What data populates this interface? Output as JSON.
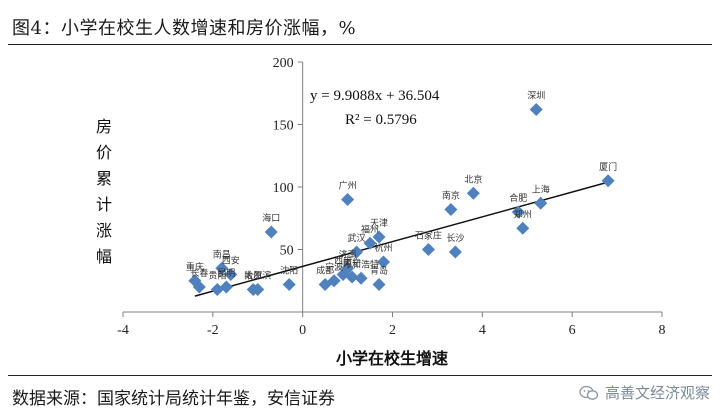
{
  "title": "图4：小学在校生人数增速和房价涨幅，%",
  "source": "数据来源：国家统计局统计年鉴，安信证券",
  "watermark": "高善文经济观察",
  "colors": {
    "marker": "#4f81bd",
    "trendline": "#111111",
    "axis": "#808080"
  },
  "chart_data": {
    "type": "scatter",
    "title": "",
    "xlabel": "小学在校生增速",
    "ylabel": "房价累计涨幅",
    "xlim": [
      -4,
      8
    ],
    "ylim": [
      0,
      200
    ],
    "xticks": [
      -4,
      -2,
      0,
      2,
      4,
      6,
      8
    ],
    "yticks": [
      50,
      100,
      150,
      200
    ],
    "grid": false,
    "trendline": {
      "slope": 9.9088,
      "intercept": 36.504,
      "equation": "y = 9.9088x + 36.504",
      "r2": "R² = 0.5796",
      "x_range": [
        -2.4,
        6.8
      ]
    },
    "points": [
      {
        "x": 5.2,
        "y": 162,
        "label": "深圳"
      },
      {
        "x": 6.8,
        "y": 105,
        "label": "厦门"
      },
      {
        "x": 3.8,
        "y": 95,
        "label": "北京"
      },
      {
        "x": 5.3,
        "y": 87,
        "label": "上海"
      },
      {
        "x": 3.3,
        "y": 82,
        "label": "南京"
      },
      {
        "x": 4.8,
        "y": 80,
        "label": "合肥"
      },
      {
        "x": 4.9,
        "y": 67,
        "label": "郑州"
      },
      {
        "x": 3.4,
        "y": 48,
        "label": "长沙"
      },
      {
        "x": 2.8,
        "y": 50,
        "label": "石家庄"
      },
      {
        "x": 1.0,
        "y": 90,
        "label": "广州"
      },
      {
        "x": -0.7,
        "y": 64,
        "label": "海口"
      },
      {
        "x": 1.7,
        "y": 60,
        "label": "天津"
      },
      {
        "x": 1.5,
        "y": 55,
        "label": "福州"
      },
      {
        "x": 1.2,
        "y": 48,
        "label": "武汉"
      },
      {
        "x": 1.8,
        "y": 40,
        "label": "杭州"
      },
      {
        "x": 1.0,
        "y": 35,
        "label": "济南"
      },
      {
        "x": 0.9,
        "y": 30,
        "label": "西宁"
      },
      {
        "x": 0.7,
        "y": 25,
        "label": "宁波"
      },
      {
        "x": 1.1,
        "y": 28,
        "label": "南宁"
      },
      {
        "x": 1.3,
        "y": 27,
        "label": "呼和浩特"
      },
      {
        "x": 1.7,
        "y": 22,
        "label": "青岛"
      },
      {
        "x": 0.5,
        "y": 22,
        "label": "成都"
      },
      {
        "x": -0.3,
        "y": 22,
        "label": "沈阳"
      },
      {
        "x": -1.8,
        "y": 35,
        "label": "南昌"
      },
      {
        "x": -1.6,
        "y": 30,
        "label": "西安"
      },
      {
        "x": -2.4,
        "y": 25,
        "label": "重庆"
      },
      {
        "x": -2.3,
        "y": 20,
        "label": "长春"
      },
      {
        "x": -1.9,
        "y": 18,
        "label": "贵阳"
      },
      {
        "x": -1.7,
        "y": 20,
        "label": "昆明"
      },
      {
        "x": -1.1,
        "y": 18,
        "label": "太原"
      },
      {
        "x": -1.0,
        "y": 18,
        "label": "哈尔滨"
      }
    ]
  }
}
